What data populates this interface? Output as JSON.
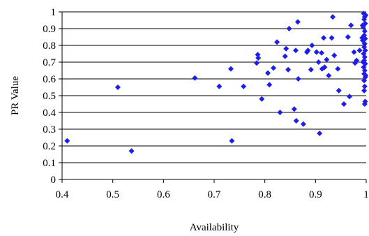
{
  "chart_data": {
    "type": "scatter",
    "xlabel": "Availability",
    "ylabel": "PR Value",
    "xlim": [
      0.4,
      1.0
    ],
    "ylim": [
      0,
      1.0
    ],
    "xticks": [
      "0.4",
      "0.5",
      "0.6",
      "0.7",
      "0.8",
      "0.9",
      "1"
    ],
    "yticks": [
      "0",
      "0.1",
      "0.2",
      "0.3",
      "0.4",
      "0.5",
      "0.6",
      "0.7",
      "0.8",
      "0.9",
      "1"
    ],
    "grid": "horizontal",
    "marker_color": "#1E1EE6",
    "points": [
      [
        0.41,
        0.23
      ],
      [
        0.51,
        0.55
      ],
      [
        0.537,
        0.17
      ],
      [
        0.662,
        0.605
      ],
      [
        0.71,
        0.555
      ],
      [
        0.733,
        0.66
      ],
      [
        0.735,
        0.23
      ],
      [
        0.758,
        0.555
      ],
      [
        0.786,
        0.745
      ],
      [
        0.787,
        0.725
      ],
      [
        0.784,
        0.695
      ],
      [
        0.794,
        0.48
      ],
      [
        0.806,
        0.635
      ],
      [
        0.809,
        0.565
      ],
      [
        0.817,
        0.665
      ],
      [
        0.824,
        0.82
      ],
      [
        0.83,
        0.4
      ],
      [
        0.84,
        0.735
      ],
      [
        0.842,
        0.78
      ],
      [
        0.846,
        0.655
      ],
      [
        0.848,
        0.9
      ],
      [
        0.858,
        0.42
      ],
      [
        0.861,
        0.77
      ],
      [
        0.862,
        0.35
      ],
      [
        0.865,
        0.94
      ],
      [
        0.866,
        0.6
      ],
      [
        0.876,
        0.33
      ],
      [
        0.883,
        0.76
      ],
      [
        0.885,
        0.77
      ],
      [
        0.891,
        0.655
      ],
      [
        0.893,
        0.8
      ],
      [
        0.902,
        0.76
      ],
      [
        0.906,
        0.7
      ],
      [
        0.908,
        0.275
      ],
      [
        0.912,
        0.755
      ],
      [
        0.913,
        0.66
      ],
      [
        0.916,
        0.845
      ],
      [
        0.918,
        0.67
      ],
      [
        0.922,
        0.715
      ],
      [
        0.926,
        0.62
      ],
      [
        0.932,
        0.845
      ],
      [
        0.934,
        0.97
      ],
      [
        0.937,
        0.74
      ],
      [
        0.944,
        0.66
      ],
      [
        0.946,
        0.53
      ],
      [
        0.956,
        0.45
      ],
      [
        0.964,
        0.85
      ],
      [
        0.967,
        0.495
      ],
      [
        0.97,
        0.92
      ],
      [
        0.976,
        0.76
      ],
      [
        0.978,
        0.695
      ],
      [
        0.981,
        0.71
      ],
      [
        0.987,
        0.77
      ],
      [
        0.995,
        0.99
      ],
      [
        0.997,
        0.97
      ],
      [
        0.996,
        0.955
      ],
      [
        0.998,
        0.93
      ],
      [
        0.994,
        0.91
      ],
      [
        0.997,
        0.885
      ],
      [
        0.996,
        0.86
      ],
      [
        0.998,
        0.84
      ],
      [
        0.993,
        0.83
      ],
      [
        0.997,
        0.81
      ],
      [
        0.996,
        0.79
      ],
      [
        0.998,
        0.77
      ],
      [
        0.995,
        0.75
      ],
      [
        0.997,
        0.73
      ],
      [
        0.996,
        0.71
      ],
      [
        0.998,
        0.69
      ],
      [
        0.995,
        0.67
      ],
      [
        0.997,
        0.65
      ],
      [
        0.996,
        0.63
      ],
      [
        0.998,
        0.61
      ],
      [
        0.996,
        0.59
      ],
      [
        0.997,
        0.555
      ],
      [
        0.996,
        0.53
      ],
      [
        0.998,
        0.465
      ],
      [
        0.997,
        0.45
      ],
      [
        0.993,
        0.92
      ],
      [
        0.992,
        0.845
      ],
      [
        0.994,
        0.7
      ],
      [
        0.999,
        0.98
      ],
      [
        0.999,
        0.62
      ]
    ]
  }
}
